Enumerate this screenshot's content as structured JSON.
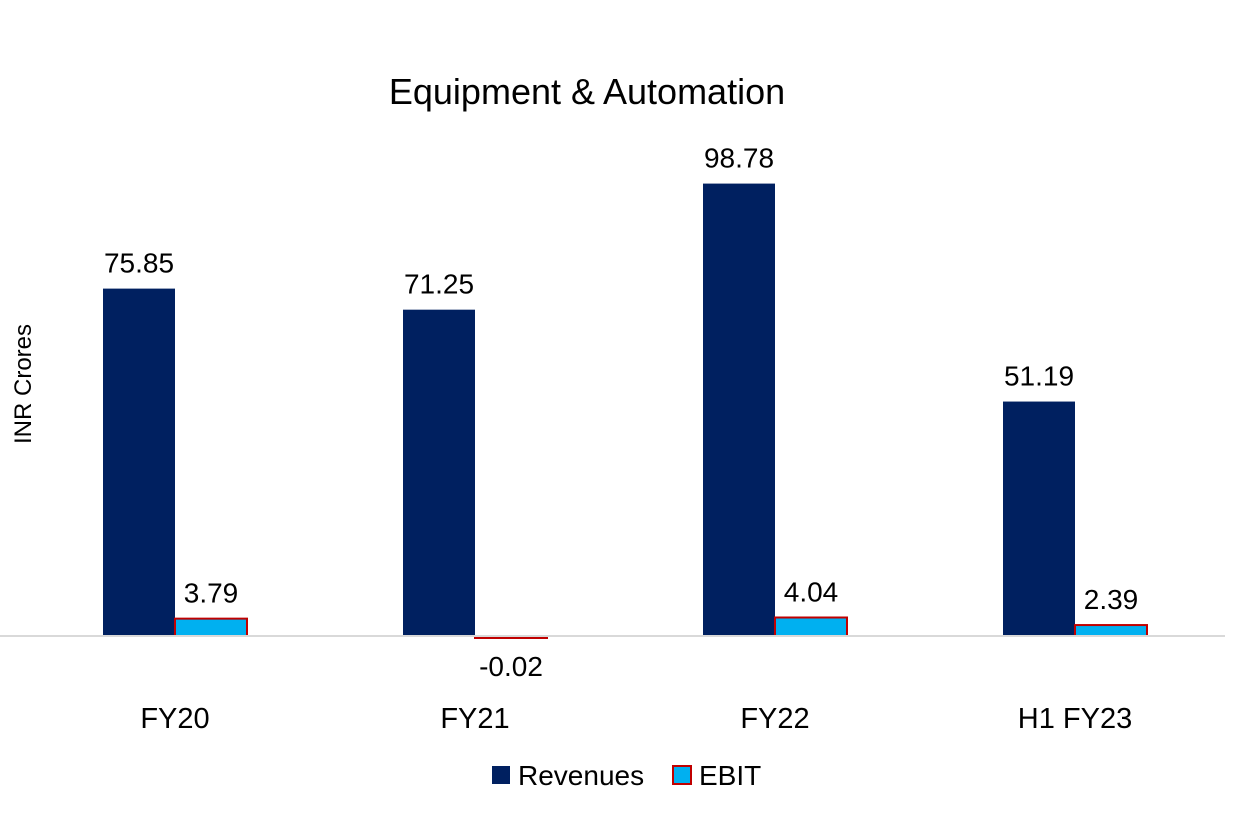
{
  "chart_data": {
    "type": "bar",
    "title": "Equipment & Automation",
    "xlabel": "",
    "ylabel": "INR Crores",
    "categories": [
      "FY20",
      "FY21",
      "FY22",
      "H1 FY23"
    ],
    "series": [
      {
        "name": "Revenues",
        "values": [
          75.85,
          71.25,
          98.78,
          51.19
        ],
        "color": "#002060"
      },
      {
        "name": "EBIT",
        "values": [
          3.79,
          -0.02,
          4.04,
          2.39
        ],
        "color": "#00B0F0",
        "border": "#C00000"
      }
    ],
    "data_labels": [
      [
        "75.85",
        "71.25",
        "98.78",
        "51.19"
      ],
      [
        "3.79",
        "-0.02",
        "4.04",
        "2.39"
      ]
    ],
    "grid": false,
    "legend": "bottom",
    "axis_color": "#D9D9D9"
  }
}
